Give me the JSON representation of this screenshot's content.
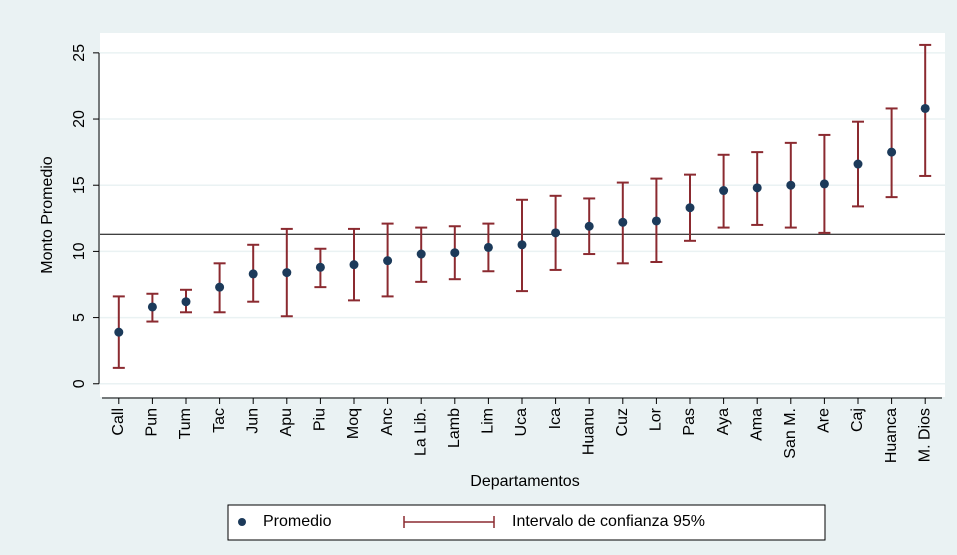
{
  "chart_data": {
    "type": "errorbar",
    "xlabel": "Departamentos",
    "ylabel": "Monto Promedio",
    "categories": [
      "Call",
      "Pun",
      "Tum",
      "Tac",
      "Jun",
      "Apu",
      "Piu",
      "Moq",
      "Anc",
      "La Lib.",
      "Lamb",
      "Lim",
      "Uca",
      "Ica",
      "Huanu",
      "Cuz",
      "Lor",
      "Pas",
      "Aya",
      "Ama",
      "San M.",
      "Are",
      "Caj",
      "Huanca",
      "M. Dios"
    ],
    "series": [
      {
        "name": "Promedio",
        "color": "#1c3a5a",
        "values": [
          3.9,
          5.8,
          6.2,
          7.3,
          8.3,
          8.4,
          8.8,
          9.0,
          9.3,
          9.8,
          9.9,
          10.3,
          10.5,
          11.4,
          11.9,
          12.2,
          12.3,
          13.3,
          14.6,
          14.8,
          15.0,
          15.1,
          16.6,
          17.5,
          20.8
        ]
      },
      {
        "name": "Intervalo de confianza 95%",
        "color": "#8b2a30",
        "low": [
          1.2,
          4.7,
          5.4,
          5.4,
          6.2,
          5.1,
          7.3,
          6.3,
          6.6,
          7.7,
          7.9,
          8.5,
          7.0,
          8.6,
          9.8,
          9.1,
          9.2,
          10.8,
          11.8,
          12.0,
          11.8,
          11.4,
          13.4,
          14.1,
          15.7
        ],
        "high": [
          6.6,
          6.8,
          7.1,
          9.1,
          10.5,
          11.7,
          10.2,
          11.7,
          12.1,
          11.8,
          11.9,
          12.1,
          13.9,
          14.2,
          14.0,
          15.2,
          15.5,
          15.8,
          17.3,
          17.5,
          18.2,
          18.8,
          19.8,
          20.8,
          25.6
        ]
      }
    ],
    "hline": 11.3,
    "ylim": [
      -1,
      26.5
    ],
    "yticks": [
      0,
      5,
      10,
      15,
      20,
      25
    ],
    "grid": true,
    "legend": "bottom"
  }
}
